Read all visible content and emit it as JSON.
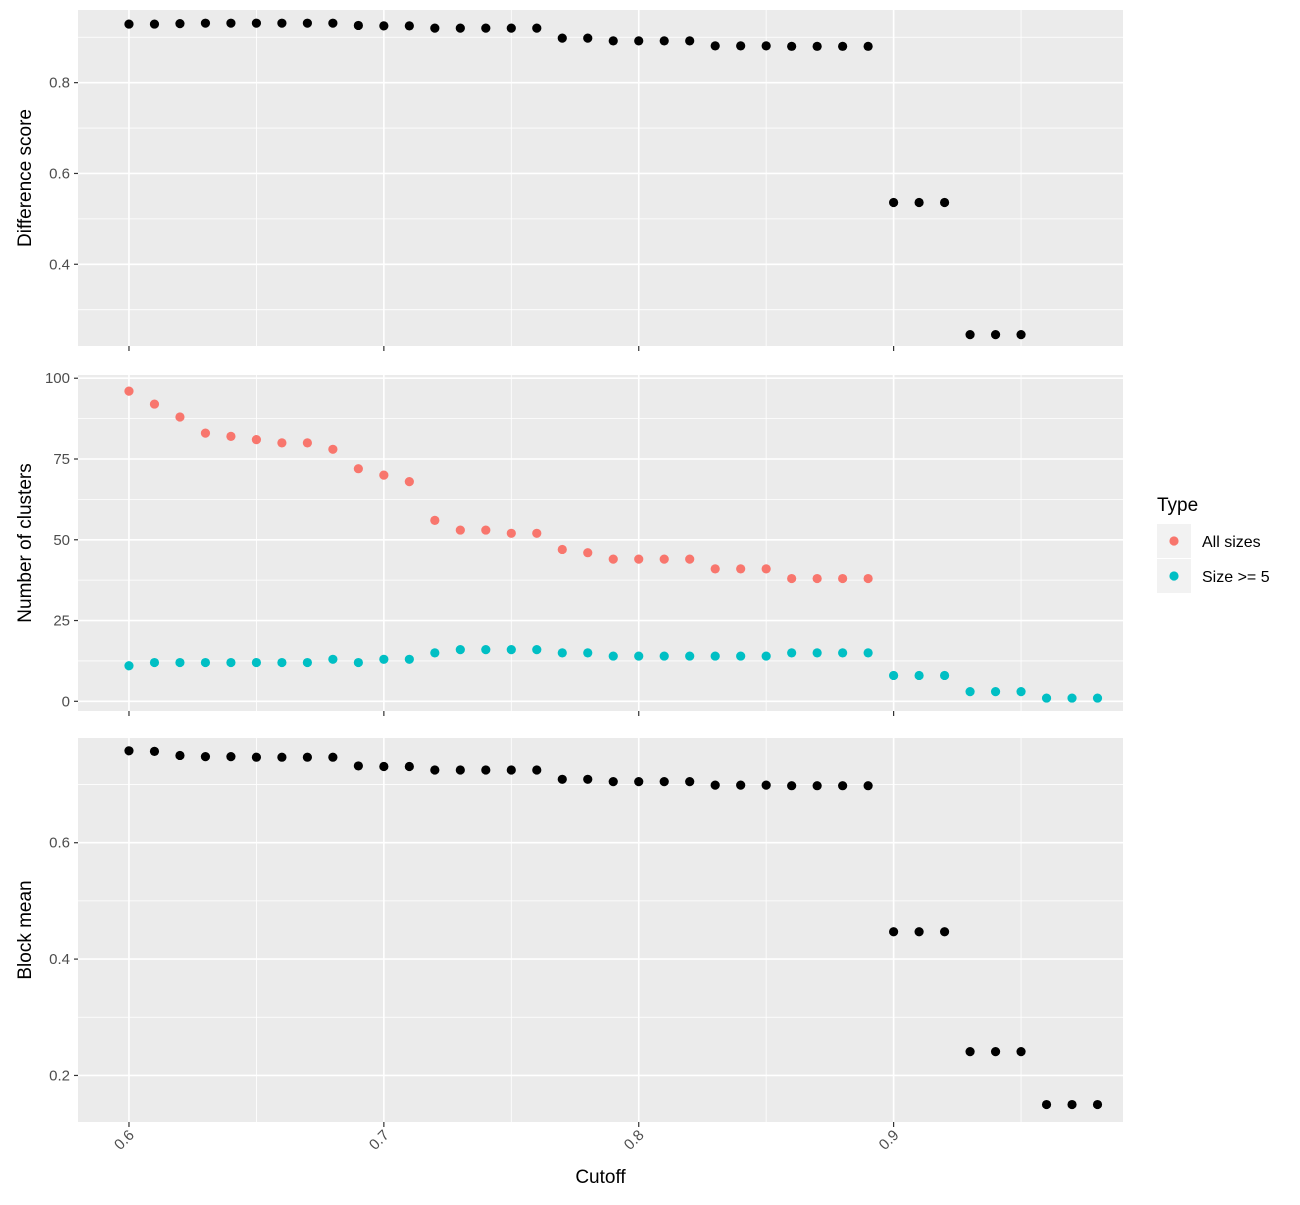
{
  "chart_data": [
    {
      "type": "scatter",
      "ylabel": "Difference score",
      "xlim": [
        0.58,
        0.99
      ],
      "ylim": [
        0.22,
        0.96
      ],
      "yticks": [
        0.4,
        0.6,
        0.8
      ],
      "ytick_labels": [
        "0.4",
        "0.6",
        "0.8"
      ],
      "series": [
        {
          "color": "#000000",
          "x": [
            0.6,
            0.61,
            0.62,
            0.63,
            0.64,
            0.65,
            0.66,
            0.67,
            0.68,
            0.69,
            0.7,
            0.71,
            0.72,
            0.73,
            0.74,
            0.75,
            0.76,
            0.77,
            0.78,
            0.79,
            0.8,
            0.81,
            0.82,
            0.83,
            0.84,
            0.85,
            0.86,
            0.87,
            0.88,
            0.89,
            0.9,
            0.91,
            0.92,
            0.93,
            0.94,
            0.95
          ],
          "y": [
            0.929,
            0.929,
            0.93,
            0.931,
            0.931,
            0.931,
            0.931,
            0.931,
            0.931,
            0.926,
            0.925,
            0.925,
            0.92,
            0.92,
            0.92,
            0.92,
            0.92,
            0.898,
            0.898,
            0.892,
            0.892,
            0.892,
            0.892,
            0.881,
            0.881,
            0.881,
            0.88,
            0.88,
            0.88,
            0.88,
            0.536,
            0.536,
            0.536,
            0.245,
            0.245,
            0.245
          ]
        }
      ]
    },
    {
      "type": "scatter",
      "ylabel": "Number of clusters",
      "xlim": [
        0.58,
        0.99
      ],
      "ylim": [
        -3,
        101
      ],
      "yticks": [
        0,
        25,
        50,
        75,
        100
      ],
      "ytick_labels": [
        "0",
        "25",
        "50",
        "75",
        "100"
      ],
      "legend": {
        "title": "Type",
        "placement": "right",
        "entries": [
          "All sizes",
          "Size >= 5"
        ]
      },
      "series": [
        {
          "name": "All sizes",
          "color": "#F8766D",
          "x": [
            0.6,
            0.61,
            0.62,
            0.63,
            0.64,
            0.65,
            0.66,
            0.67,
            0.68,
            0.69,
            0.7,
            0.71,
            0.72,
            0.73,
            0.74,
            0.75,
            0.76,
            0.77,
            0.78,
            0.79,
            0.8,
            0.81,
            0.82,
            0.83,
            0.84,
            0.85,
            0.86,
            0.87,
            0.88,
            0.89
          ],
          "y": [
            96,
            92,
            88,
            83,
            82,
            81,
            80,
            80,
            78,
            72,
            70,
            68,
            56,
            53,
            53,
            52,
            52,
            47,
            46,
            44,
            44,
            44,
            44,
            41,
            41,
            41,
            38,
            38,
            38,
            38
          ]
        },
        {
          "name": "Size >= 5",
          "color": "#00BFC4",
          "x": [
            0.6,
            0.61,
            0.62,
            0.63,
            0.64,
            0.65,
            0.66,
            0.67,
            0.68,
            0.69,
            0.7,
            0.71,
            0.72,
            0.73,
            0.74,
            0.75,
            0.76,
            0.77,
            0.78,
            0.79,
            0.8,
            0.81,
            0.82,
            0.83,
            0.84,
            0.85,
            0.86,
            0.87,
            0.88,
            0.89,
            0.9,
            0.91,
            0.92,
            0.93,
            0.94,
            0.95,
            0.96,
            0.97,
            0.98
          ],
          "y": [
            11,
            12,
            12,
            12,
            12,
            12,
            12,
            12,
            13,
            12,
            13,
            13,
            15,
            16,
            16,
            16,
            16,
            15,
            15,
            14,
            14,
            14,
            14,
            14,
            14,
            14,
            15,
            15,
            15,
            15,
            8,
            8,
            8,
            3,
            3,
            3,
            1,
            1,
            1
          ]
        }
      ]
    },
    {
      "type": "scatter",
      "ylabel": "Block mean",
      "xlabel": "Cutoff",
      "xlim": [
        0.58,
        0.99
      ],
      "ylim": [
        0.12,
        0.78
      ],
      "yticks": [
        0.2,
        0.4,
        0.6
      ],
      "ytick_labels": [
        "0.2",
        "0.4",
        "0.6"
      ],
      "xticks": [
        0.6,
        0.7,
        0.8,
        0.9
      ],
      "xtick_labels": [
        "0.6",
        "0.7",
        "0.8",
        "0.9"
      ],
      "series": [
        {
          "color": "#000000",
          "x": [
            0.6,
            0.61,
            0.62,
            0.63,
            0.64,
            0.65,
            0.66,
            0.67,
            0.68,
            0.69,
            0.7,
            0.71,
            0.72,
            0.73,
            0.74,
            0.75,
            0.76,
            0.77,
            0.78,
            0.79,
            0.8,
            0.81,
            0.82,
            0.83,
            0.84,
            0.85,
            0.86,
            0.87,
            0.88,
            0.89,
            0.9,
            0.91,
            0.92,
            0.93,
            0.94,
            0.95,
            0.96,
            0.97,
            0.98
          ],
          "y": [
            0.758,
            0.757,
            0.75,
            0.748,
            0.748,
            0.747,
            0.747,
            0.747,
            0.747,
            0.732,
            0.731,
            0.731,
            0.725,
            0.725,
            0.725,
            0.725,
            0.725,
            0.709,
            0.709,
            0.705,
            0.705,
            0.705,
            0.705,
            0.699,
            0.699,
            0.699,
            0.698,
            0.698,
            0.698,
            0.698,
            0.447,
            0.447,
            0.447,
            0.241,
            0.241,
            0.241,
            0.15,
            0.15,
            0.15
          ]
        }
      ]
    }
  ],
  "shared_x": {
    "label": "Cutoff",
    "ticks": [
      0.6,
      0.7,
      0.8,
      0.9
    ],
    "tick_labels": [
      "0.6",
      "0.7",
      "0.8",
      "0.9"
    ]
  }
}
